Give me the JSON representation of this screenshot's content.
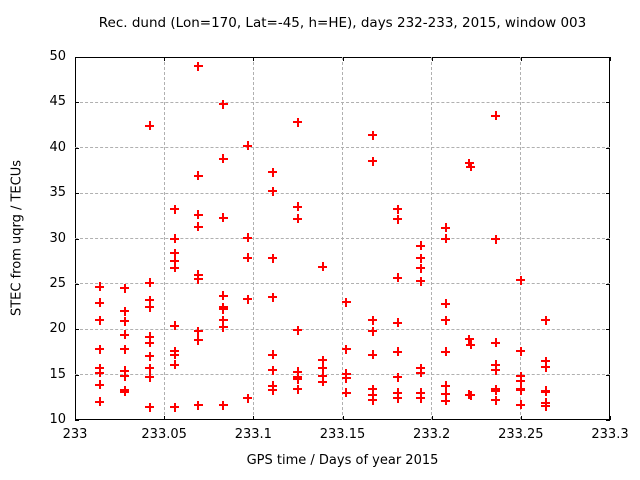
{
  "chart_data": {
    "type": "scatter",
    "title": "Rec. dund (Lon=170, Lat=-45, h=HE), days 232-233, 2015, window 003",
    "xlabel": "GPS time / Days of year 2015",
    "ylabel": "STEC from uqrg / TECUs",
    "xlim": [
      233,
      233.3
    ],
    "ylim": [
      10,
      50
    ],
    "xticks": [
      233,
      233.05,
      233.1,
      233.15,
      233.2,
      233.25,
      233.3
    ],
    "xtick_labels": [
      "233",
      "233.05",
      "233.1",
      "233.15",
      "233.2",
      "233.25",
      "233.3"
    ],
    "yticks": [
      10,
      15,
      20,
      25,
      30,
      35,
      40,
      45,
      50
    ],
    "ytick_labels": [
      "10",
      "15",
      "20",
      "25",
      "30",
      "35",
      "40",
      "45",
      "50"
    ],
    "grid": true,
    "legend": "none",
    "marker": "plus",
    "marker_color": "#ff0000",
    "axis_color": "#000000",
    "grid_color": "#b0b0b0",
    "background": "#ffffff",
    "series": [
      {
        "name": "STEC",
        "points": [
          [
            233.014,
            24.7
          ],
          [
            233.014,
            22.9
          ],
          [
            233.014,
            21.0
          ],
          [
            233.014,
            17.8
          ],
          [
            233.014,
            15.7
          ],
          [
            233.014,
            15.2
          ],
          [
            233.014,
            13.9
          ],
          [
            233.014,
            12.0
          ],
          [
            233.028,
            24.5
          ],
          [
            233.028,
            22.0
          ],
          [
            233.028,
            20.9
          ],
          [
            233.028,
            19.4
          ],
          [
            233.028,
            17.8
          ],
          [
            233.028,
            15.4
          ],
          [
            233.028,
            14.8
          ],
          [
            233.028,
            13.3
          ],
          [
            233.028,
            13.1
          ],
          [
            233.042,
            42.4
          ],
          [
            233.042,
            25.1
          ],
          [
            233.042,
            23.2
          ],
          [
            233.042,
            22.4
          ],
          [
            233.042,
            19.2
          ],
          [
            233.042,
            18.5
          ],
          [
            233.042,
            17.0
          ],
          [
            233.042,
            15.7
          ],
          [
            233.042,
            14.7
          ],
          [
            233.042,
            11.4
          ],
          [
            233.056,
            33.2
          ],
          [
            233.056,
            30.0
          ],
          [
            233.056,
            28.4
          ],
          [
            233.056,
            27.5
          ],
          [
            233.056,
            26.8
          ],
          [
            233.056,
            20.4
          ],
          [
            233.056,
            17.6
          ],
          [
            233.056,
            17.2
          ],
          [
            233.056,
            16.1
          ],
          [
            233.056,
            11.4
          ],
          [
            233.069,
            49.0
          ],
          [
            233.069,
            36.9
          ],
          [
            233.069,
            32.6
          ],
          [
            233.069,
            31.3
          ],
          [
            233.069,
            26.0
          ],
          [
            233.069,
            25.5
          ],
          [
            233.069,
            19.8
          ],
          [
            233.069,
            18.8
          ],
          [
            233.069,
            11.6
          ],
          [
            233.083,
            44.8
          ],
          [
            233.083,
            38.8
          ],
          [
            233.083,
            32.3
          ],
          [
            233.083,
            23.7
          ],
          [
            233.083,
            22.4
          ],
          [
            233.083,
            22.2
          ],
          [
            233.083,
            21.0
          ],
          [
            233.083,
            20.2
          ],
          [
            233.083,
            11.6
          ],
          [
            233.097,
            40.2
          ],
          [
            233.097,
            30.1
          ],
          [
            233.097,
            27.9
          ],
          [
            233.097,
            23.3
          ],
          [
            233.097,
            12.4
          ],
          [
            233.111,
            37.3
          ],
          [
            233.111,
            35.2
          ],
          [
            233.111,
            27.8
          ],
          [
            233.111,
            23.5
          ],
          [
            233.111,
            17.2
          ],
          [
            233.111,
            15.5
          ],
          [
            233.111,
            13.8
          ],
          [
            233.111,
            13.3
          ],
          [
            233.125,
            42.8
          ],
          [
            233.125,
            33.5
          ],
          [
            233.125,
            32.2
          ],
          [
            233.125,
            19.9
          ],
          [
            233.125,
            15.3
          ],
          [
            233.125,
            14.7
          ],
          [
            233.125,
            14.5
          ],
          [
            233.125,
            13.4
          ],
          [
            233.139,
            26.9
          ],
          [
            233.139,
            16.6
          ],
          [
            233.139,
            15.7
          ],
          [
            233.139,
            14.9
          ],
          [
            233.139,
            14.2
          ],
          [
            233.152,
            23.0
          ],
          [
            233.152,
            17.8
          ],
          [
            233.152,
            15.1
          ],
          [
            233.152,
            14.6
          ],
          [
            233.152,
            13.0
          ],
          [
            233.167,
            41.4
          ],
          [
            233.167,
            38.5
          ],
          [
            233.167,
            21.0
          ],
          [
            233.167,
            19.8
          ],
          [
            233.167,
            17.2
          ],
          [
            233.167,
            13.4
          ],
          [
            233.167,
            12.7
          ],
          [
            233.167,
            12.2
          ],
          [
            233.181,
            33.2
          ],
          [
            233.181,
            32.1
          ],
          [
            233.181,
            25.7
          ],
          [
            233.181,
            20.7
          ],
          [
            233.181,
            17.5
          ],
          [
            233.181,
            14.7
          ],
          [
            233.181,
            13.0
          ],
          [
            233.181,
            12.4
          ],
          [
            233.194,
            29.2
          ],
          [
            233.194,
            27.8
          ],
          [
            233.194,
            26.7
          ],
          [
            233.194,
            25.3
          ],
          [
            233.194,
            15.7
          ],
          [
            233.194,
            15.2
          ],
          [
            233.194,
            13.0
          ],
          [
            233.194,
            12.4
          ],
          [
            233.208,
            31.2
          ],
          [
            233.208,
            30.0
          ],
          [
            233.208,
            22.8
          ],
          [
            233.208,
            21.0
          ],
          [
            233.208,
            17.5
          ],
          [
            233.208,
            13.8
          ],
          [
            233.208,
            12.9
          ],
          [
            233.208,
            12.1
          ],
          [
            233.221,
            38.3
          ],
          [
            233.222,
            37.9
          ],
          [
            233.221,
            18.9
          ],
          [
            233.222,
            18.3
          ],
          [
            233.221,
            12.8
          ],
          [
            233.222,
            12.7
          ],
          [
            233.236,
            43.5
          ],
          [
            233.236,
            29.9
          ],
          [
            233.236,
            18.5
          ],
          [
            233.236,
            16.1
          ],
          [
            233.236,
            15.5
          ],
          [
            233.236,
            13.4
          ],
          [
            233.236,
            13.2
          ],
          [
            233.236,
            12.2
          ],
          [
            233.25,
            25.4
          ],
          [
            233.25,
            17.6
          ],
          [
            233.25,
            14.8
          ],
          [
            233.25,
            14.3
          ],
          [
            233.25,
            13.4
          ],
          [
            233.25,
            13.3
          ],
          [
            233.25,
            11.7
          ],
          [
            233.264,
            21.0
          ],
          [
            233.264,
            16.5
          ],
          [
            233.264,
            15.8
          ],
          [
            233.264,
            13.2
          ],
          [
            233.264,
            13.1
          ],
          [
            233.264,
            11.9
          ],
          [
            233.264,
            11.5
          ]
        ]
      }
    ]
  },
  "layout_note": "gnuplot-style scatter plot, red plus markers, dashed grey grid"
}
